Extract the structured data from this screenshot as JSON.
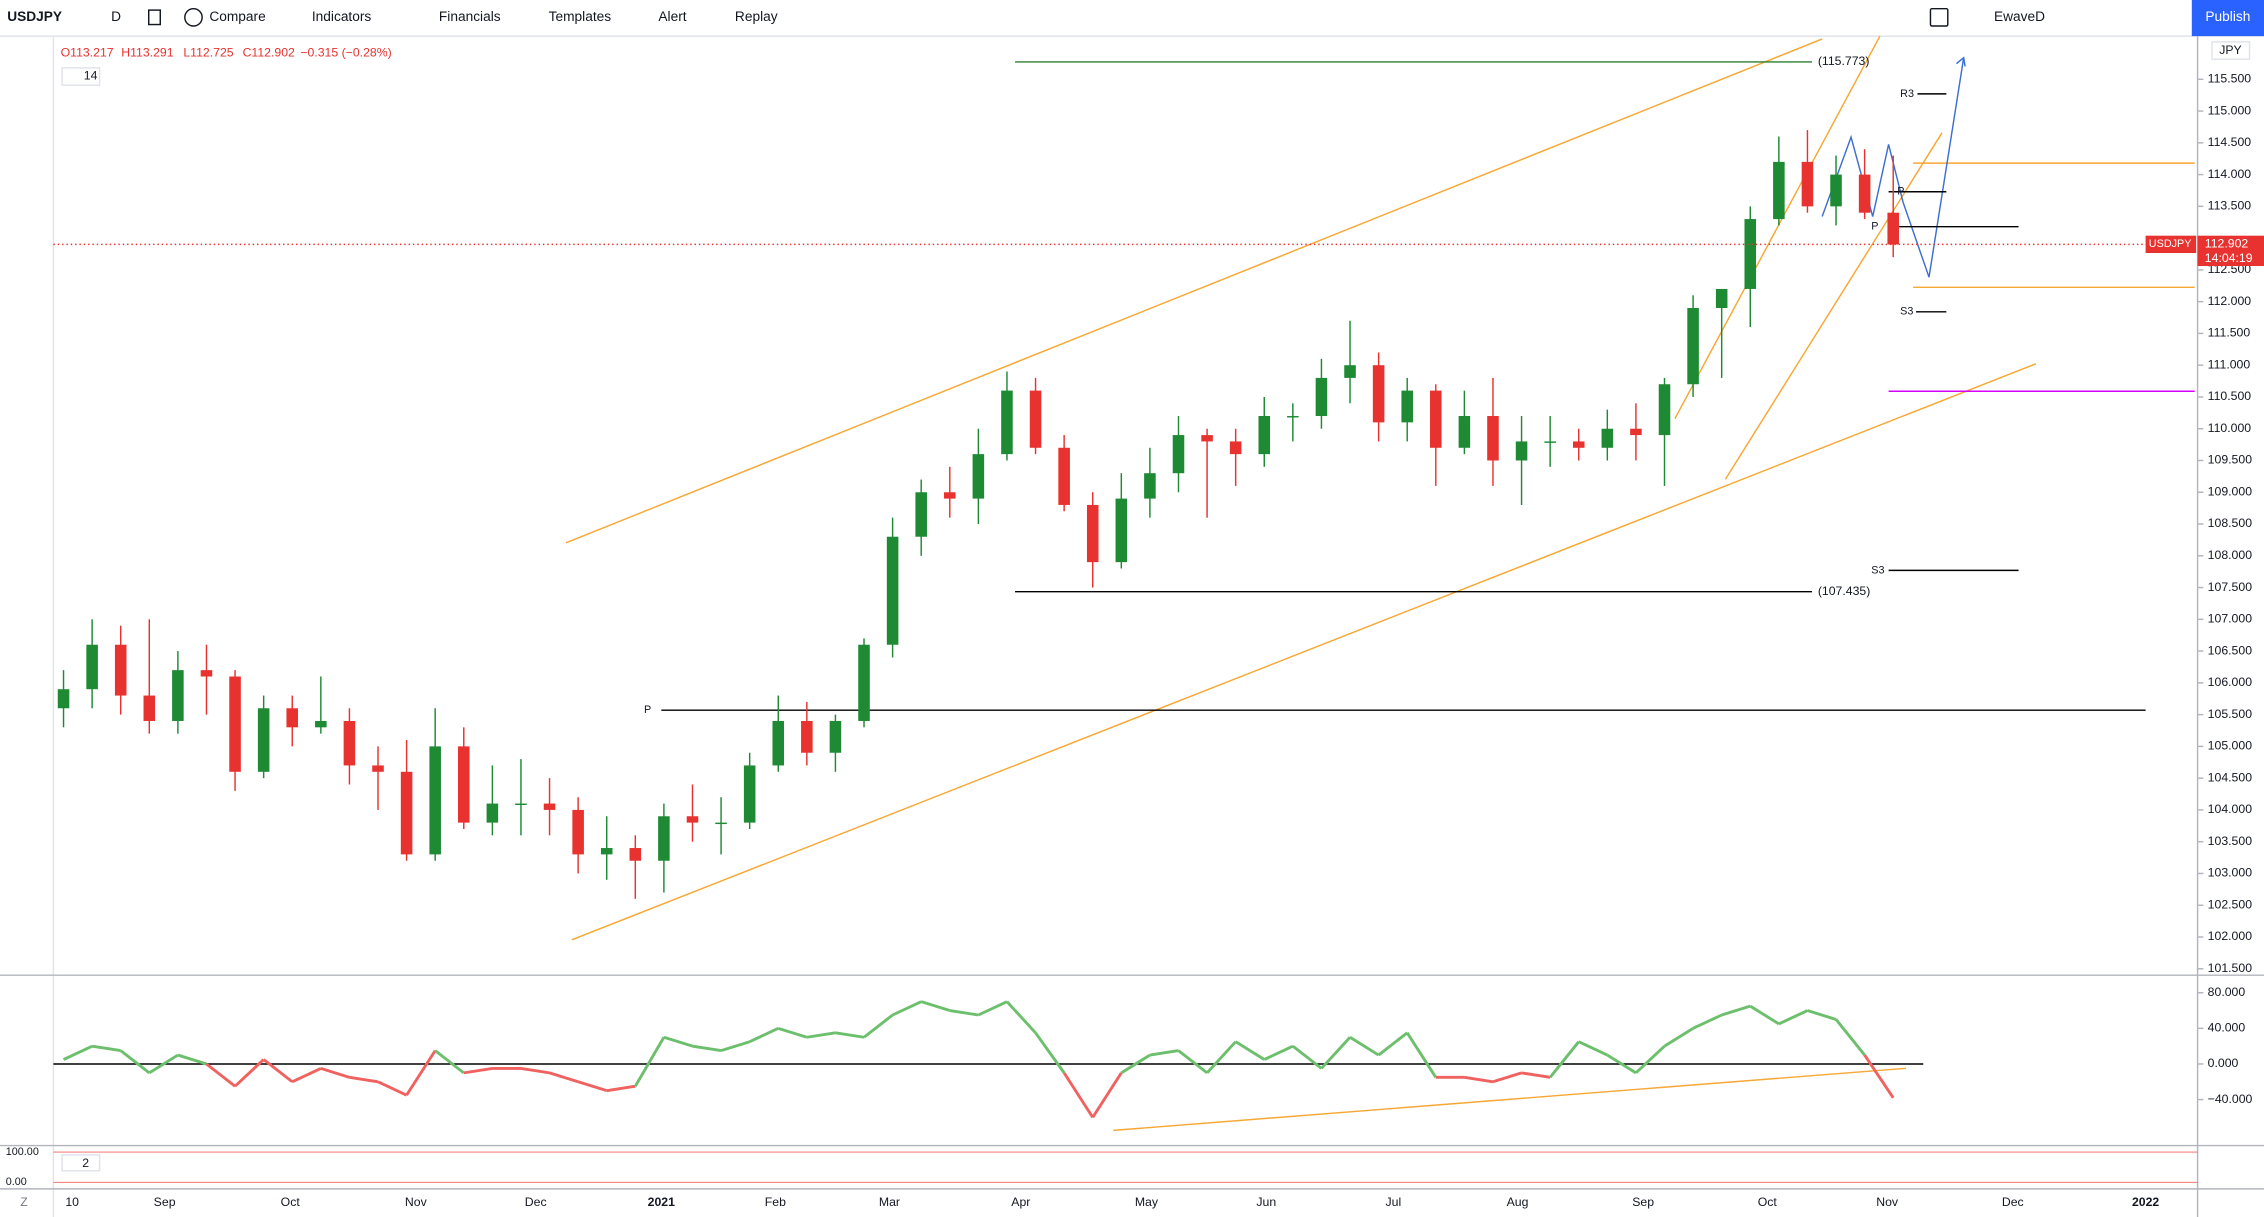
{
  "toolbar": {
    "symbol": "USDJPY",
    "interval": "D",
    "compare": "Compare",
    "indicators": "Indicators",
    "financials": "Financials",
    "templates": "Templates",
    "alert": "Alert",
    "replay": "Replay",
    "layout": "EwaveD",
    "publish": "Publish"
  },
  "footer": {
    "z_button": "Z"
  },
  "chart_data": {
    "type": "candlestick",
    "symbol": "USDJPY",
    "ohlc_legend": [
      "O113.217",
      "H113.291",
      "L112.725",
      "C112.902",
      "−0.315 (−0.28%)"
    ],
    "length": 14,
    "currency": "JPY",
    "last_price": 112.902,
    "last_price_label": "112.902",
    "countdown": "14:04:19",
    "up_color": "#1e8a34",
    "down_color": "#e8322f",
    "candles": [
      [
        105.6,
        106.2,
        105.3,
        105.9
      ],
      [
        105.9,
        107.0,
        105.6,
        106.6
      ],
      [
        106.6,
        106.9,
        105.5,
        105.8
      ],
      [
        105.8,
        107.0,
        105.2,
        105.4
      ],
      [
        105.4,
        106.5,
        105.2,
        106.2
      ],
      [
        106.2,
        106.6,
        105.5,
        106.1
      ],
      [
        106.1,
        106.2,
        104.3,
        104.6
      ],
      [
        104.6,
        105.8,
        104.5,
        105.6
      ],
      [
        105.6,
        105.8,
        105.0,
        105.3
      ],
      [
        105.3,
        106.1,
        105.2,
        105.4
      ],
      [
        105.4,
        105.6,
        104.4,
        104.7
      ],
      [
        104.7,
        105.0,
        104.0,
        104.6
      ],
      [
        104.6,
        105.1,
        103.2,
        103.3
      ],
      [
        103.3,
        105.6,
        103.2,
        105.0
      ],
      [
        105.0,
        105.3,
        103.7,
        103.8
      ],
      [
        103.8,
        104.7,
        103.6,
        104.1
      ],
      [
        104.1,
        104.8,
        103.6,
        104.1
      ],
      [
        104.1,
        104.5,
        103.6,
        104.0
      ],
      [
        104.0,
        104.2,
        103.0,
        103.3
      ],
      [
        103.3,
        103.9,
        102.9,
        103.4
      ],
      [
        103.4,
        103.6,
        102.6,
        103.2
      ],
      [
        103.2,
        104.1,
        102.7,
        103.9
      ],
      [
        103.9,
        104.4,
        103.5,
        103.8
      ],
      [
        103.8,
        104.2,
        103.3,
        103.8
      ],
      [
        103.8,
        104.9,
        103.7,
        104.7
      ],
      [
        104.7,
        105.8,
        104.6,
        105.4
      ],
      [
        105.4,
        105.7,
        104.7,
        104.9
      ],
      [
        104.9,
        105.5,
        104.6,
        105.4
      ],
      [
        105.4,
        106.7,
        105.3,
        106.6
      ],
      [
        106.6,
        108.6,
        106.4,
        108.3
      ],
      [
        108.3,
        109.2,
        108.0,
        109.0
      ],
      [
        109.0,
        109.4,
        108.6,
        108.9
      ],
      [
        108.9,
        110.0,
        108.5,
        109.6
      ],
      [
        109.6,
        110.9,
        109.5,
        110.6
      ],
      [
        110.6,
        110.8,
        109.6,
        109.7
      ],
      [
        109.7,
        109.9,
        108.7,
        108.8
      ],
      [
        108.8,
        109.0,
        107.5,
        107.9
      ],
      [
        107.9,
        109.3,
        107.8,
        108.9
      ],
      [
        108.9,
        109.7,
        108.6,
        109.3
      ],
      [
        109.3,
        110.2,
        109.0,
        109.9
      ],
      [
        109.9,
        110.0,
        108.6,
        109.8
      ],
      [
        109.8,
        110.0,
        109.1,
        109.6
      ],
      [
        109.6,
        110.5,
        109.4,
        110.2
      ],
      [
        110.2,
        110.4,
        109.8,
        110.2
      ],
      [
        110.2,
        111.1,
        110.0,
        110.8
      ],
      [
        110.8,
        111.7,
        110.4,
        111.0
      ],
      [
        111.0,
        111.2,
        109.8,
        110.1
      ],
      [
        110.1,
        110.8,
        109.8,
        110.6
      ],
      [
        110.6,
        110.7,
        109.1,
        109.7
      ],
      [
        109.7,
        110.6,
        109.6,
        110.2
      ],
      [
        110.2,
        110.8,
        109.1,
        109.5
      ],
      [
        109.5,
        110.2,
        108.8,
        109.8
      ],
      [
        109.8,
        110.2,
        109.4,
        109.8
      ],
      [
        109.8,
        110.0,
        109.5,
        109.7
      ],
      [
        109.7,
        110.3,
        109.5,
        110.0
      ],
      [
        110.0,
        110.4,
        109.5,
        109.9
      ],
      [
        109.9,
        110.8,
        109.1,
        110.7
      ],
      [
        110.7,
        112.1,
        110.5,
        111.9
      ],
      [
        111.9,
        112.2,
        110.8,
        112.2
      ],
      [
        112.2,
        113.5,
        111.6,
        113.3
      ],
      [
        113.3,
        114.6,
        113.2,
        114.2
      ],
      [
        114.2,
        114.7,
        113.4,
        113.5
      ],
      [
        113.5,
        114.3,
        113.2,
        114.0
      ],
      [
        114.0,
        114.4,
        113.3,
        113.4
      ],
      [
        113.4,
        114.3,
        112.7,
        112.9
      ]
    ],
    "ylim": [
      101.41,
      116.18
    ],
    "yticks": [
      {
        "value": 101.5,
        "label": "101.500"
      },
      {
        "value": 102,
        "label": "102.000"
      },
      {
        "value": 102.5,
        "label": "102.500"
      },
      {
        "value": 103,
        "label": "103.000"
      },
      {
        "value": 103.5,
        "label": "103.500"
      },
      {
        "value": 104,
        "label": "104.000"
      },
      {
        "value": 104.5,
        "label": "104.500"
      },
      {
        "value": 105,
        "label": "105.000"
      },
      {
        "value": 105.5,
        "label": "105.500"
      },
      {
        "value": 106,
        "label": "106.000"
      },
      {
        "value": 106.5,
        "label": "106.500"
      },
      {
        "value": 107,
        "label": "107.000"
      },
      {
        "value": 107.5,
        "label": "107.500"
      },
      {
        "value": 108,
        "label": "108.000"
      },
      {
        "value": 108.5,
        "label": "108.500"
      },
      {
        "value": 109,
        "label": "109.000"
      },
      {
        "value": 109.5,
        "label": "109.500"
      },
      {
        "value": 110,
        "label": "110.000"
      },
      {
        "value": 110.5,
        "label": "110.500"
      },
      {
        "value": 111,
        "label": "111.000"
      },
      {
        "value": 111.5,
        "label": "111.500"
      },
      {
        "value": 112,
        "label": "112.000"
      },
      {
        "value": 112.5,
        "label": "112.500"
      },
      {
        "value": 113.5,
        "label": "113.500"
      },
      {
        "value": 114,
        "label": "114.000"
      },
      {
        "value": 114.5,
        "label": "114.500"
      },
      {
        "value": 115,
        "label": "115.000"
      },
      {
        "value": 115.5,
        "label": "115.500"
      }
    ],
    "x_labels": [
      "10",
      "Sep",
      "Oct",
      "Nov",
      "Dec",
      "2021",
      "Feb",
      "Mar",
      "Apr",
      "May",
      "Jun",
      "Jul",
      "Aug",
      "Sep",
      "Oct",
      "Nov",
      "Dec",
      "2022"
    ],
    "levels": [
      {
        "value": 115.773,
        "label": "(115.773)",
        "color": "#2e7d32"
      },
      {
        "value": 107.435,
        "label": "(107.435)",
        "color": "#000000"
      }
    ],
    "pivots": [
      {
        "label": "R3",
        "value": 115.27
      },
      {
        "label": "P",
        "value": 113.73
      },
      {
        "label": "P",
        "value": 113.18
      },
      {
        "label": "S3",
        "value": 111.84
      },
      {
        "label": "S3",
        "value": 107.77
      },
      {
        "label": "P",
        "value": 105.57
      }
    ],
    "oscillator": {
      "up_color": "#6cbf6c",
      "down_color": "#f0625f",
      "values": [
        5,
        20,
        15,
        -10,
        10,
        0,
        -25,
        5,
        -20,
        -5,
        -15,
        -20,
        -35,
        15,
        -10,
        -5,
        -5,
        -10,
        -20,
        -30,
        -25,
        30,
        20,
        15,
        25,
        40,
        30,
        35,
        30,
        55,
        70,
        60,
        55,
        70,
        35,
        -10,
        -60,
        -10,
        10,
        15,
        -10,
        25,
        5,
        20,
        -5,
        30,
        10,
        35,
        -15,
        -15,
        -20,
        -10,
        -15,
        25,
        10,
        -10,
        20,
        40,
        55,
        65,
        45,
        60,
        50,
        10,
        -38
      ],
      "ylim": [
        -90.8,
        98.9
      ],
      "yticks": [
        {
          "value": 80,
          "label": "80.000"
        },
        {
          "value": 40,
          "label": "40.000"
        },
        {
          "value": 0,
          "label": "0.000"
        },
        {
          "value": -40,
          "label": "−40.000"
        }
      ]
    },
    "stoch": {
      "length": 2,
      "yticks": [
        {
          "value": 100,
          "label": "100.00"
        },
        {
          "value": 0,
          "label": "0.00"
        }
      ]
    }
  }
}
